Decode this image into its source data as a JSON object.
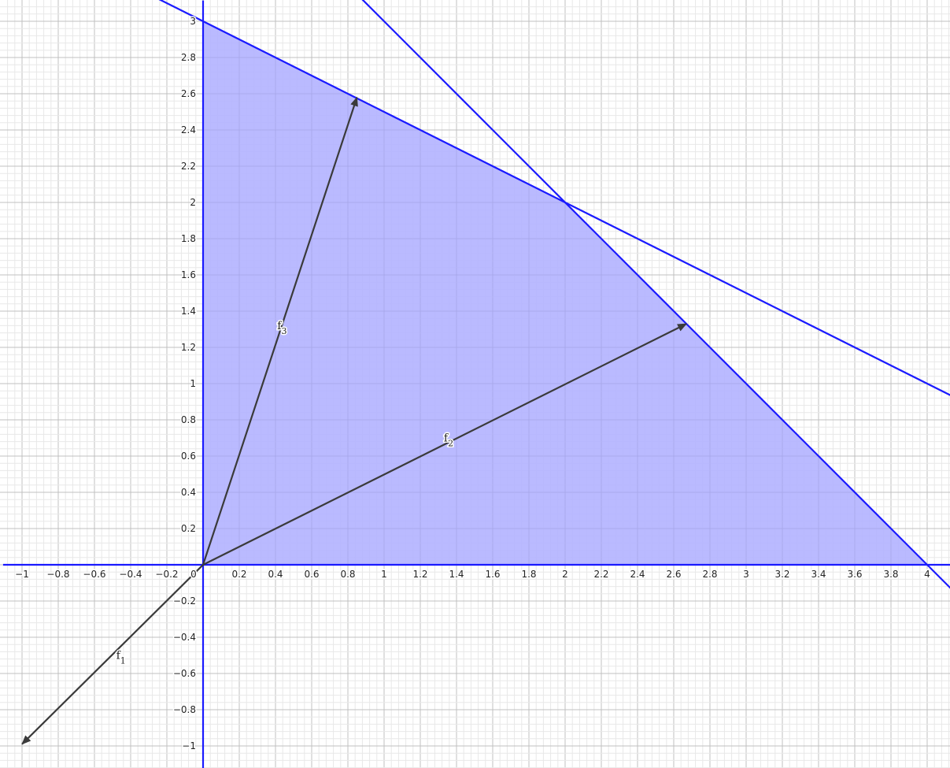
{
  "chart_data": {
    "type": "line",
    "title": "",
    "xlabel": "",
    "ylabel": "",
    "xlim": [
      -1.1,
      4.13
    ],
    "ylim": [
      -1.12,
      3.11
    ],
    "grid": true,
    "x_ticks": [
      "−1",
      "−0.8",
      "−0.6",
      "−0.4",
      "−0.2",
      "0",
      "0.2",
      "0.4",
      "0.6",
      "0.8",
      "1",
      "1.2",
      "1.4",
      "1.6",
      "1.8",
      "2",
      "2.2",
      "2.4",
      "2.6",
      "2.8",
      "3",
      "3.2",
      "3.4",
      "3.6",
      "3.8",
      "4"
    ],
    "y_ticks": [
      "3",
      "2.8",
      "2.6",
      "2.4",
      "2.2",
      "2",
      "1.8",
      "1.6",
      "1.4",
      "1.2",
      "1",
      "0.8",
      "0.6",
      "0.4",
      "0.2",
      "−0.2",
      "−0.4",
      "−0.6",
      "−0.8",
      "−1"
    ],
    "feasible_region": {
      "color": "#b3b3ff",
      "vertices": [
        [
          0,
          0
        ],
        [
          4,
          0
        ],
        [
          2,
          2
        ],
        [
          0,
          3
        ]
      ]
    },
    "lines": [
      {
        "equation": "x + 2y = 6",
        "points": [
          [
            -0.25,
            3.125
          ],
          [
            4.13,
            0.935
          ]
        ],
        "color": "#1a1aff"
      },
      {
        "equation": "x + y = 4",
        "points": [
          [
            0.87,
            3.13
          ],
          [
            4.13,
            -0.13
          ]
        ],
        "color": "#1a1aff"
      },
      {
        "equation": "y = 0",
        "points": [
          [
            -1.1,
            0
          ],
          [
            4.13,
            0
          ]
        ],
        "color": "#1a1aff"
      },
      {
        "equation": "x = 0",
        "points": [
          [
            0,
            -1.12
          ],
          [
            0,
            3.11
          ]
        ],
        "color": "#1a1aff"
      }
    ],
    "vectors": [
      {
        "label": "f",
        "sub": "1",
        "from": [
          0,
          0
        ],
        "to": [
          -1,
          -0.99
        ],
        "label_at": [
          -0.48,
          -0.52
        ],
        "color": "#3a3a3a"
      },
      {
        "label": "f",
        "sub": "2",
        "from": [
          0,
          0
        ],
        "to": [
          2.67,
          1.33
        ],
        "label_at": [
          1.33,
          0.68
        ],
        "color": "#3a3a3a"
      },
      {
        "label": "f",
        "sub": "3",
        "from": [
          0,
          0
        ],
        "to": [
          0.85,
          2.58
        ],
        "label_at": [
          0.41,
          1.3
        ],
        "color": "#3a3a3a"
      }
    ]
  }
}
